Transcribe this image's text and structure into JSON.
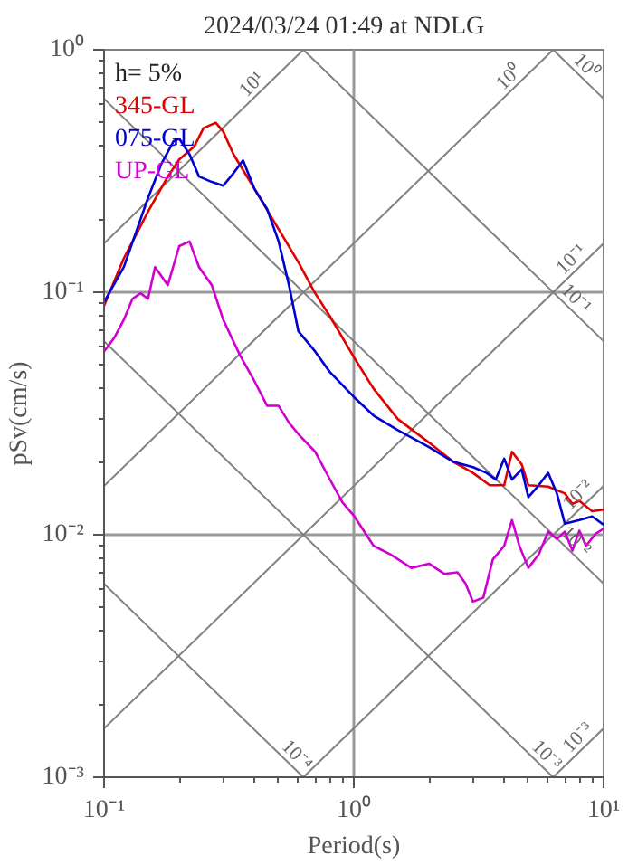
{
  "chart_data": {
    "type": "line",
    "title": "2024/03/24 01:49 at NDLG",
    "xlabel": "Period(s)",
    "ylabel": "pSv(cm/s)",
    "log": "xy",
    "grid": true,
    "legend": "top left",
    "xlim": [
      0.1,
      10
    ],
    "ylim": [
      0.001,
      1
    ],
    "xticks": [
      {
        "value": 0.1,
        "label": "10⁻¹"
      },
      {
        "value": 1,
        "label": "10⁰"
      },
      {
        "value": 10,
        "label": "10¹"
      }
    ],
    "yticks": [
      {
        "value": 0.001,
        "label": "10⁻³"
      },
      {
        "value": 0.01,
        "label": "10⁻²"
      },
      {
        "value": 0.1,
        "label": "10⁻¹"
      },
      {
        "value": 1,
        "label": "10⁰"
      }
    ],
    "annotations": [
      "h= 5%",
      {
        "text": "10¹",
        "x": 0.42,
        "y": 0.668
      },
      {
        "text": "10⁰",
        "x": 4.5,
        "y": 0.716
      },
      {
        "text": "10⁰",
        "x": 7.93,
        "y": 0.792
      },
      {
        "text": "10⁻¹",
        "x": 8,
        "y": 0.127
      },
      {
        "text": "10⁻¹",
        "x": 7.2,
        "y": 0.0873
      },
      {
        "text": "10⁻²",
        "x": 8.5,
        "y": 0.01353
      },
      {
        "text": "10⁻²",
        "x": 7.2,
        "y": 0.00873
      },
      {
        "text": "10⁻³",
        "x": 5.5,
        "y": 0.001142
      },
      {
        "text": "10⁻³",
        "x": 8.5,
        "y": 0.001353
      },
      {
        "text": "10⁻⁴",
        "x": 0.55,
        "y": 0.001142
      }
    ],
    "series": [
      {
        "color": "#808080",
        "x": [
          0.1,
          0.628
        ],
        "values": [
          0.159,
          1
        ]
      },
      {
        "color": "#808080",
        "x": [
          0.1,
          6.28
        ],
        "values": [
          0.0159,
          1
        ]
      },
      {
        "color": "#808080",
        "x": [
          0.1,
          10
        ],
        "values": [
          0.00159,
          0.159
        ]
      },
      {
        "color": "#808080",
        "x": [
          0.628,
          10
        ],
        "values": [
          0.001,
          0.0159
        ]
      },
      {
        "color": "#808080",
        "x": [
          6.28,
          10
        ],
        "values": [
          0.001,
          0.00159
        ]
      },
      {
        "color": "#808080",
        "x": [
          6.28,
          10
        ],
        "values": [
          1,
          0.628
        ]
      },
      {
        "color": "#808080",
        "x": [
          0.628,
          10
        ],
        "values": [
          1,
          0.0628
        ]
      },
      {
        "color": "#808080",
        "x": [
          0.1,
          10
        ],
        "values": [
          0.628,
          0.00628
        ]
      },
      {
        "color": "#808080",
        "x": [
          0.1,
          6.28
        ],
        "values": [
          0.0628,
          0.001
        ]
      },
      {
        "color": "#808080",
        "x": [
          0.1,
          0.628
        ],
        "values": [
          0.00628,
          0.001
        ]
      },
      {
        "name": "345-GL",
        "color": "#e00000",
        "x": [
          0.1,
          0.12,
          0.15,
          0.18,
          0.2,
          0.23,
          0.25,
          0.28,
          0.3,
          0.33,
          0.4,
          0.5,
          0.6,
          0.7,
          0.8,
          1.0,
          1.2,
          1.5,
          2,
          2.5,
          3,
          3.5,
          4,
          4.3,
          4.7,
          5,
          6,
          7,
          7.5,
          8,
          9,
          10
        ],
        "values": [
          0.088,
          0.138,
          0.215,
          0.3,
          0.353,
          0.4,
          0.475,
          0.5,
          0.46,
          0.37,
          0.267,
          0.182,
          0.133,
          0.099,
          0.08,
          0.054,
          0.04,
          0.03,
          0.024,
          0.02,
          0.018,
          0.016,
          0.016,
          0.022,
          0.0195,
          0.016,
          0.0158,
          0.0148,
          0.0134,
          0.0138,
          0.0125,
          0.0127
        ]
      },
      {
        "name": "075-GL",
        "color": "#0000d0",
        "x": [
          0.1,
          0.12,
          0.15,
          0.17,
          0.19,
          0.2,
          0.22,
          0.24,
          0.27,
          0.3,
          0.33,
          0.36,
          0.4,
          0.45,
          0.5,
          0.55,
          0.6,
          0.7,
          0.8,
          1,
          1.2,
          1.5,
          2,
          2.5,
          3,
          3.4,
          3.7,
          4,
          4.3,
          4.7,
          5,
          5.5,
          6,
          6.5,
          7,
          8,
          9,
          10
        ],
        "values": [
          0.091,
          0.127,
          0.245,
          0.34,
          0.42,
          0.43,
          0.37,
          0.3,
          0.285,
          0.275,
          0.31,
          0.35,
          0.267,
          0.22,
          0.162,
          0.107,
          0.069,
          0.057,
          0.047,
          0.037,
          0.031,
          0.027,
          0.023,
          0.02,
          0.019,
          0.018,
          0.0169,
          0.0206,
          0.0169,
          0.0186,
          0.0143,
          0.016,
          0.018,
          0.0148,
          0.0111,
          0.0115,
          0.0119,
          0.011
        ]
      },
      {
        "name": "UP-GL",
        "color": "#d000d0",
        "x": [
          0.1,
          0.11,
          0.12,
          0.13,
          0.14,
          0.15,
          0.16,
          0.18,
          0.2,
          0.22,
          0.24,
          0.27,
          0.3,
          0.35,
          0.4,
          0.45,
          0.5,
          0.55,
          0.6,
          0.7,
          0.8,
          0.9,
          1,
          1.2,
          1.4,
          1.7,
          2,
          2.3,
          2.6,
          2.8,
          3,
          3.3,
          3.6,
          4,
          4.3,
          4.6,
          5,
          5.5,
          6,
          6.5,
          7,
          7.5,
          8,
          8.5,
          9.3,
          10
        ],
        "values": [
          0.057,
          0.065,
          0.077,
          0.094,
          0.099,
          0.094,
          0.127,
          0.107,
          0.155,
          0.162,
          0.127,
          0.107,
          0.077,
          0.055,
          0.043,
          0.034,
          0.034,
          0.029,
          0.026,
          0.022,
          0.017,
          0.0136,
          0.012,
          0.009,
          0.0083,
          0.0073,
          0.0076,
          0.0069,
          0.007,
          0.0063,
          0.0053,
          0.0055,
          0.0079,
          0.009,
          0.0115,
          0.009,
          0.0073,
          0.0083,
          0.0103,
          0.0096,
          0.0103,
          0.0086,
          0.0104,
          0.009,
          0.0101,
          0.0106
        ]
      }
    ]
  }
}
